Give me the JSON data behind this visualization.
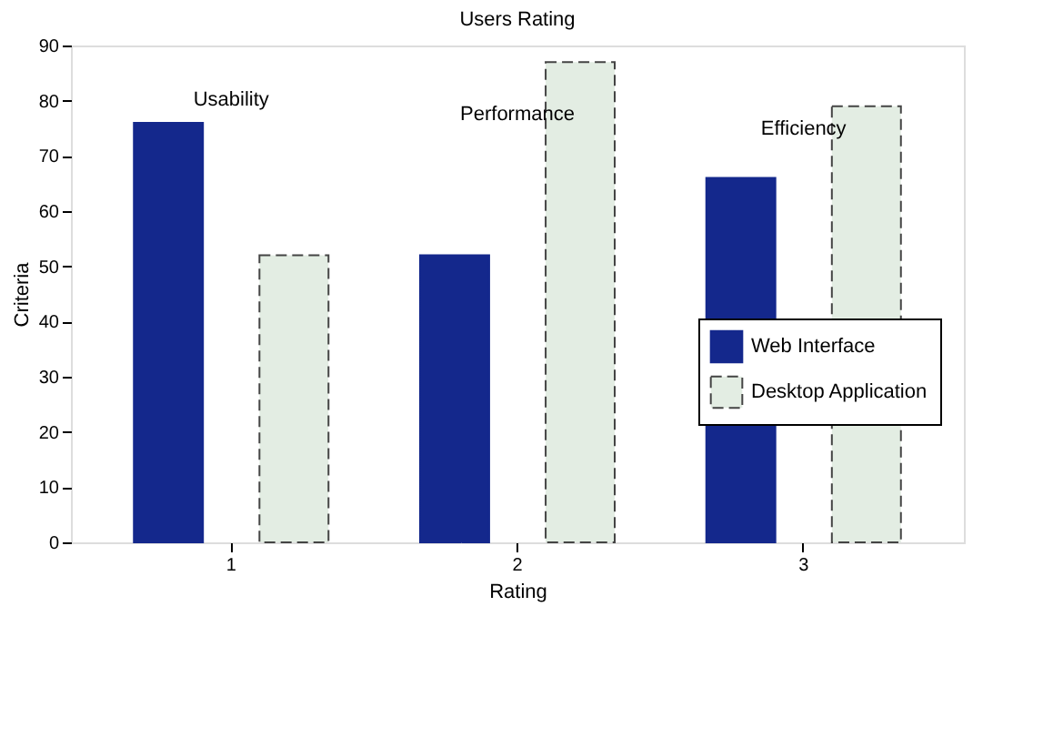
{
  "chart_data": {
    "type": "bar",
    "title": "Users Rating",
    "xlabel": "Rating",
    "ylabel": "Criteria",
    "categories": [
      "1",
      "2",
      "3"
    ],
    "series": [
      {
        "name": "Web Interface",
        "color": "#14288c",
        "values": [
          76,
          52,
          66
        ],
        "line_style": "solid"
      },
      {
        "name": "Desktop Application",
        "color": "#e3ede3",
        "values": [
          52,
          87,
          79
        ],
        "line_style": "dashed"
      }
    ],
    "ylim": [
      0,
      90
    ],
    "yticks": [
      0,
      10,
      20,
      30,
      40,
      50,
      60,
      70,
      80,
      90
    ],
    "grid": false,
    "legend": "right",
    "annotations": [
      "Usability",
      "Performance",
      "Efficiency"
    ]
  }
}
